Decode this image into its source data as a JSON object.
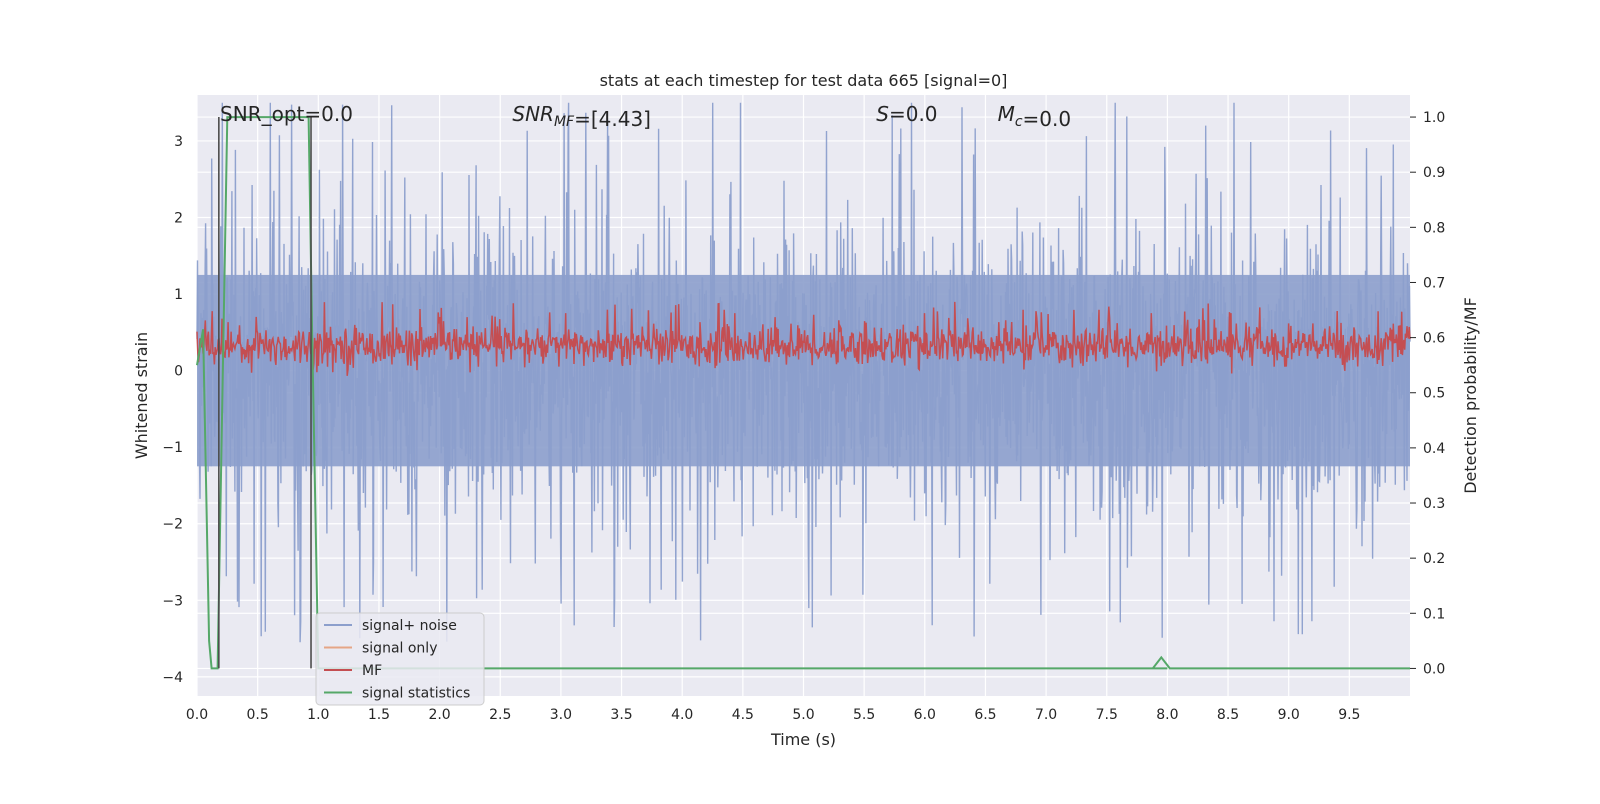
{
  "chart_data": {
    "type": "line",
    "title": "stats at each timestep for test data 665 [signal=0]",
    "xlabel": "Time (s)",
    "ylabel_left": "Whitened strain",
    "ylabel_right": "Detection probability/MF",
    "xlim": [
      0,
      10
    ],
    "ylim_left": [
      -4.25,
      3.6
    ],
    "ylim_right": [
      -0.05,
      1.04
    ],
    "x_ticks": [
      0.0,
      0.5,
      1.0,
      1.5,
      2.0,
      2.5,
      3.0,
      3.5,
      4.0,
      4.5,
      5.0,
      5.5,
      6.0,
      6.5,
      7.0,
      7.5,
      8.0,
      8.5,
      9.0,
      9.5
    ],
    "x_tick_labels": [
      "0.0",
      "0.5",
      "1.0",
      "1.5",
      "2.0",
      "2.5",
      "3.0",
      "3.5",
      "4.0",
      "4.5",
      "5.0",
      "5.5",
      "6.0",
      "6.5",
      "7.0",
      "7.5",
      "8.0",
      "8.5",
      "9.0",
      "9.5"
    ],
    "y_left_ticks": [
      -4,
      -3,
      -2,
      -1,
      0,
      1,
      2,
      3
    ],
    "y_left_tick_labels": [
      "−4",
      "−3",
      "−2",
      "−1",
      "0",
      "1",
      "2",
      "3"
    ],
    "y_right_ticks": [
      0.0,
      0.1,
      0.2,
      0.3,
      0.4,
      0.5,
      0.6,
      0.7,
      0.8,
      0.9,
      1.0
    ],
    "y_right_tick_labels": [
      "0.0",
      "0.1",
      "0.2",
      "0.3",
      "0.4",
      "0.5",
      "0.6",
      "0.7",
      "0.8",
      "0.9",
      "1.0"
    ],
    "grid": true,
    "legend_position": "lower-left",
    "annotations": [
      {
        "parts": [
          {
            "t": "SNR_opt=0.0",
            "i": false
          }
        ]
      },
      {
        "parts": [
          {
            "t": "SNR",
            "i": true
          },
          {
            "t": "MF",
            "i": true,
            "sub": true
          },
          {
            "t": "=[4.43]",
            "i": false
          }
        ]
      },
      {
        "parts": [
          {
            "t": "S",
            "i": true
          },
          {
            "t": "=0.0",
            "i": false
          }
        ]
      },
      {
        "parts": [
          {
            "t": "M",
            "i": true
          },
          {
            "t": "c",
            "i": true,
            "sub": true
          },
          {
            "t": "=0.0",
            "i": false
          }
        ]
      }
    ],
    "series": [
      {
        "name": "signal+ noise",
        "axis": "left",
        "color": "#8c9fcc",
        "style": "dense noise, roughly between -1.8 and 1.8 with spikes to about 3.5 and -3.9"
      },
      {
        "name": "signal only",
        "axis": "left",
        "color": "#e5a586",
        "style": "zero (not visible)"
      },
      {
        "name": "MF",
        "axis": "right",
        "color": "#c44e52",
        "style": "noise band roughly between 0.53 and 0.64, peaks near 0.66"
      },
      {
        "name": "signal statistics",
        "axis": "right",
        "color": "#55a868",
        "x": [
          0.0,
          0.05,
          0.1,
          0.12,
          0.17,
          0.25,
          0.92,
          0.95,
          1.0,
          8.0,
          7.88,
          7.95,
          8.02,
          10.0
        ],
        "y": [
          0.55,
          0.615,
          0.05,
          0.0,
          0.0,
          1.0,
          1.0,
          0.6,
          0.0,
          0.0,
          0.0,
          0.02,
          0.0,
          0.0
        ]
      },
      {
        "name": "",
        "axis": "right",
        "color": "#4d4d4d",
        "x": [
          0.18,
          0.18,
          0.18,
          0.94,
          0.94,
          0.94
        ],
        "y": [
          0.0,
          1.0,
          0.0,
          0.0,
          1.0,
          0.0
        ]
      }
    ],
    "colors": {
      "plot_bg": "#eaeaf2",
      "grid": "#ffffff",
      "signal_noise": "#8c9fcc",
      "signal_only": "#e5a586",
      "mf": "#c44e52",
      "signal_statistics": "#55a868",
      "markers": "#4d4d4d"
    }
  }
}
